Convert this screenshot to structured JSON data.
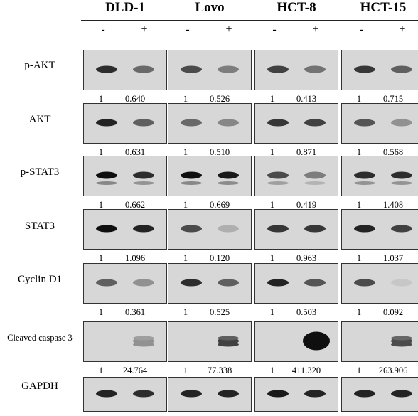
{
  "cell_lines": [
    "DLD-1",
    "Lovo",
    "HCT-8",
    "HCT-15"
  ],
  "treatment_signs": [
    "-",
    "+"
  ],
  "rows": [
    {
      "label": "p-AKT",
      "quant": [
        [
          "1",
          "0.640"
        ],
        [
          "1",
          "0.526"
        ],
        [
          "1",
          "0.413"
        ],
        [
          "1",
          "0.715"
        ]
      ]
    },
    {
      "label": "AKT",
      "quant": [
        [
          "1",
          "0.631"
        ],
        [
          "1",
          "0.510"
        ],
        [
          "1",
          "0.871"
        ],
        [
          "1",
          "0.568"
        ]
      ]
    },
    {
      "label": "p-STAT3",
      "quant": [
        [
          "1",
          "0.662"
        ],
        [
          "1",
          "0.669"
        ],
        [
          "1",
          "0.419"
        ],
        [
          "1",
          "1.408"
        ]
      ]
    },
    {
      "label": "STAT3",
      "quant": [
        [
          "1",
          "1.096"
        ],
        [
          "1",
          "0.120"
        ],
        [
          "1",
          "0.963"
        ],
        [
          "1",
          "1.037"
        ]
      ]
    },
    {
      "label": "Cyclin D1",
      "quant": [
        [
          "1",
          "0.361"
        ],
        [
          "1",
          "0.525"
        ],
        [
          "1",
          "0.503"
        ],
        [
          "1",
          "0.092"
        ]
      ]
    },
    {
      "label": "Cleaved caspase 3",
      "quant": [
        [
          "1",
          "24.764"
        ],
        [
          "1",
          "77.338"
        ],
        [
          "1",
          "411.320"
        ],
        [
          "1",
          "263.906"
        ]
      ]
    },
    {
      "label": "GAPDH",
      "quant": []
    }
  ]
}
